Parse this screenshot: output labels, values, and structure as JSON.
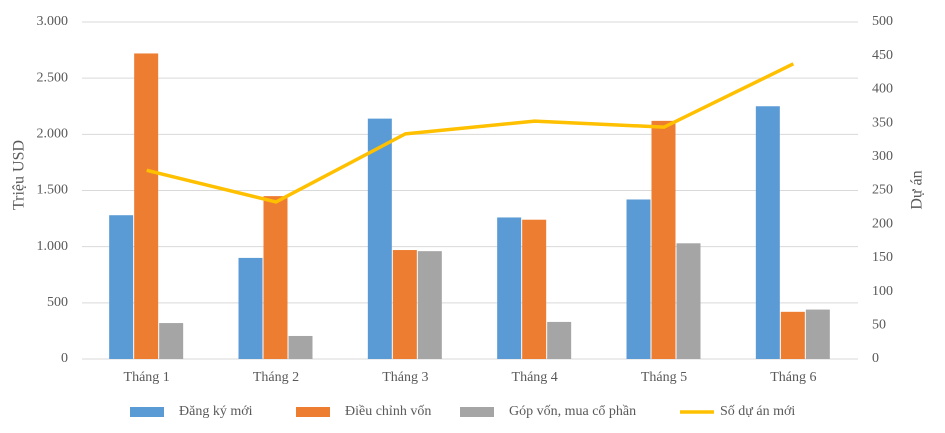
{
  "chart_data": {
    "type": "bar",
    "categories": [
      "Tháng 1",
      "Tháng 2",
      "Tháng 3",
      "Tháng 4",
      "Tháng 5",
      "Tháng 6"
    ],
    "series": [
      {
        "name": "Đăng ký mới",
        "color": "#5b9bd5",
        "values": [
          1280,
          900,
          2140,
          1260,
          1420,
          2250
        ]
      },
      {
        "name": "Điều chỉnh vốn",
        "color": "#ed7d31",
        "values": [
          2720,
          1450,
          970,
          1240,
          2120,
          420
        ]
      },
      {
        "name": "Góp vốn, mua cổ phần",
        "color": "#a5a5a5",
        "values": [
          320,
          205,
          960,
          330,
          1030,
          440
        ]
      },
      {
        "name": "Số dự án mới",
        "color": "#ffc000",
        "type": "line",
        "axis": "y2",
        "values": [
          280,
          233,
          334,
          353,
          344,
          438
        ]
      }
    ],
    "y_label": "Triệu USD",
    "y2_label": "Dự án",
    "ylim": [
      0,
      3000
    ],
    "yticks": [
      0,
      500,
      {
        "value": 1000,
        "label": "1.000"
      },
      {
        "value": 1500,
        "label": "1.500"
      },
      {
        "value": 2000,
        "label": "2.000"
      },
      {
        "value": 2500,
        "label": "2.500"
      },
      {
        "value": 3000,
        "label": "3.000"
      }
    ],
    "y2lim": [
      0,
      500
    ],
    "y2ticks": [
      0,
      50,
      100,
      150,
      200,
      250,
      300,
      350,
      400,
      450,
      500
    ],
    "grid": true,
    "legend": "bottom"
  }
}
